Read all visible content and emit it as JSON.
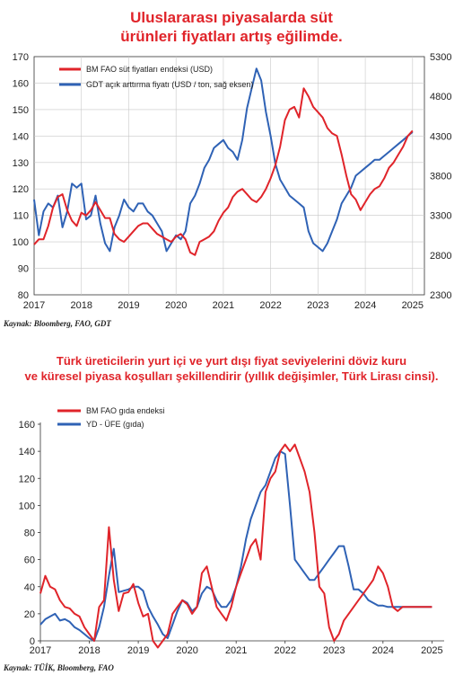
{
  "header": {
    "title_line1": "Uluslararası piyasalarda süt",
    "title_line2": "ürünleri fiyatları artış eğilimde."
  },
  "source1": "Kaynak: Bloomberg, FAO, GDT",
  "header2": {
    "title_line1": "Türk üreticilerin yurt içi ve yurt dışı fiyat seviyelerini döviz kuru",
    "title_line2": "ve küresel piyasa koşulları şekillendirir (yıllık değişimler, Türk Lirası cinsi)."
  },
  "source2": "Kaynak: TÜİK, Bloomberg, FAO",
  "chart_data": [
    {
      "type": "line",
      "title": "Uluslararası piyasalarda süt ürünleri fiyatları artış eğilimde.",
      "x_ticks": [
        "2017",
        "2018",
        "2019",
        "2020",
        "2021",
        "2022",
        "2023",
        "2024",
        "2025"
      ],
      "y_left_ticks": [
        80,
        90,
        100,
        110,
        120,
        130,
        140,
        150,
        160,
        170
      ],
      "y_right_ticks": [
        2300,
        2800,
        3300,
        3800,
        4300,
        4800,
        5300
      ],
      "ylim_left": [
        80,
        170
      ],
      "ylim_right": [
        2300,
        5300
      ],
      "xlim": [
        2017.0,
        2025.25
      ],
      "grid": true,
      "legend": "top-left",
      "colors": {
        "fao": "#e0242a",
        "gdt": "#2f62b5"
      },
      "series": [
        {
          "name": "BM FAO süt fiyatları endeksi (USD)",
          "axis": "left",
          "x": [
            2017.0,
            2017.1,
            2017.2,
            2017.3,
            2017.4,
            2017.5,
            2017.6,
            2017.7,
            2017.8,
            2017.9,
            2018.0,
            2018.1,
            2018.2,
            2018.3,
            2018.4,
            2018.5,
            2018.6,
            2018.7,
            2018.8,
            2018.9,
            2019.0,
            2019.1,
            2019.2,
            2019.3,
            2019.4,
            2019.5,
            2019.6,
            2019.7,
            2019.8,
            2019.9,
            2020.0,
            2020.1,
            2020.2,
            2020.3,
            2020.4,
            2020.5,
            2020.6,
            2020.7,
            2020.8,
            2020.9,
            2021.0,
            2021.1,
            2021.2,
            2021.3,
            2021.4,
            2021.5,
            2021.6,
            2021.7,
            2021.8,
            2021.9,
            2022.0,
            2022.1,
            2022.2,
            2022.3,
            2022.4,
            2022.5,
            2022.6,
            2022.7,
            2022.8,
            2022.9,
            2023.0,
            2023.1,
            2023.2,
            2023.3,
            2023.4,
            2023.5,
            2023.6,
            2023.7,
            2023.8,
            2023.9,
            2024.0,
            2024.1,
            2024.2,
            2024.3,
            2024.4,
            2024.5,
            2024.6,
            2024.7,
            2024.8,
            2024.9,
            2025.0
          ],
          "values": [
            99,
            101,
            101,
            106,
            113,
            117,
            118,
            112,
            108,
            106,
            111,
            110,
            112,
            115,
            112,
            109,
            109,
            103,
            101,
            100,
            102,
            104,
            106,
            107,
            107,
            105,
            103,
            102,
            101,
            100,
            102,
            103,
            101,
            96,
            95,
            100,
            101,
            102,
            104,
            108,
            111,
            113,
            117,
            119,
            120,
            118,
            116,
            115,
            117,
            120,
            124,
            129,
            136,
            146,
            150,
            151,
            147,
            158,
            155,
            151,
            149,
            147,
            143,
            141,
            140,
            133,
            125,
            118,
            116,
            112,
            115,
            118,
            120,
            121,
            124,
            128,
            130,
            133,
            136,
            140,
            142
          ]
        },
        {
          "name": "GDT açık arttırma fiyatı (USD / ton, sağ eksen)",
          "axis": "right",
          "x": [
            2017.0,
            2017.1,
            2017.2,
            2017.3,
            2017.4,
            2017.5,
            2017.6,
            2017.7,
            2017.8,
            2017.9,
            2018.0,
            2018.1,
            2018.2,
            2018.3,
            2018.4,
            2018.5,
            2018.6,
            2018.7,
            2018.8,
            2018.9,
            2019.0,
            2019.1,
            2019.2,
            2019.3,
            2019.4,
            2019.5,
            2019.6,
            2019.7,
            2019.8,
            2019.9,
            2020.0,
            2020.1,
            2020.2,
            2020.3,
            2020.4,
            2020.5,
            2020.6,
            2020.7,
            2020.8,
            2020.9,
            2021.0,
            2021.1,
            2021.2,
            2021.3,
            2021.4,
            2021.5,
            2021.6,
            2021.7,
            2021.8,
            2021.9,
            2022.0,
            2022.1,
            2022.2,
            2022.3,
            2022.4,
            2022.5,
            2022.6,
            2022.7,
            2022.8,
            2022.9,
            2023.0,
            2023.1,
            2023.2,
            2023.3,
            2023.4,
            2023.5,
            2023.6,
            2023.7,
            2023.8,
            2023.9,
            2024.0,
            2024.1,
            2024.2,
            2024.3,
            2024.4,
            2024.5,
            2024.6,
            2024.7,
            2024.8,
            2024.9,
            2025.0
          ],
          "values": [
            3500,
            3050,
            3350,
            3450,
            3400,
            3550,
            3150,
            3350,
            3700,
            3650,
            3700,
            3250,
            3300,
            3550,
            3200,
            2950,
            2850,
            3150,
            3300,
            3500,
            3400,
            3350,
            3450,
            3450,
            3350,
            3300,
            3200,
            3100,
            2850,
            2950,
            3050,
            3000,
            3100,
            3450,
            3550,
            3700,
            3900,
            4000,
            4150,
            4200,
            4250,
            4150,
            4100,
            4000,
            4250,
            4650,
            4900,
            5150,
            5000,
            4600,
            4300,
            3950,
            3750,
            3650,
            3550,
            3500,
            3450,
            3400,
            3100,
            2950,
            2900,
            2850,
            2950,
            3100,
            3250,
            3450,
            3550,
            3650,
            3800,
            3850,
            3900,
            3950,
            4000,
            4000,
            4050,
            4100,
            4150,
            4200,
            4250,
            4300,
            4350
          ]
        }
      ]
    },
    {
      "type": "line",
      "title": "Türk üreticilerin yurt içi ve yurt dışı fiyat seviyelerini döviz kuru ve küresel piyasa koşulları şekillendirir (yıllık değişimler, Türk Lirası cinsi).",
      "x_ticks": [
        "2017",
        "2018",
        "2019",
        "2020",
        "2021",
        "2022",
        "2023",
        "2024",
        "2025"
      ],
      "y_ticks": [
        0,
        20,
        40,
        60,
        80,
        100,
        120,
        140,
        160
      ],
      "ylim": [
        0,
        160
      ],
      "xlim": [
        2017.0,
        2025.25
      ],
      "grid": false,
      "legend": "top-left",
      "colors": {
        "fao": "#e0242a",
        "ufe": "#2f62b5"
      },
      "series": [
        {
          "name": "BM FAO gıda endeksi",
          "x": [
            2017.0,
            2017.1,
            2017.2,
            2017.3,
            2017.4,
            2017.5,
            2017.6,
            2017.7,
            2017.8,
            2017.9,
            2018.0,
            2018.1,
            2018.2,
            2018.3,
            2018.4,
            2018.5,
            2018.6,
            2018.7,
            2018.8,
            2018.9,
            2019.0,
            2019.1,
            2019.2,
            2019.3,
            2019.4,
            2019.5,
            2019.6,
            2019.7,
            2019.8,
            2019.9,
            2020.0,
            2020.1,
            2020.2,
            2020.3,
            2020.4,
            2020.5,
            2020.6,
            2020.7,
            2020.8,
            2020.9,
            2021.0,
            2021.1,
            2021.2,
            2021.3,
            2021.4,
            2021.5,
            2021.6,
            2021.7,
            2021.8,
            2021.9,
            2022.0,
            2022.1,
            2022.2,
            2022.3,
            2022.4,
            2022.5,
            2022.6,
            2022.7,
            2022.8,
            2022.9,
            2023.0,
            2023.1,
            2023.2,
            2023.3,
            2023.4,
            2023.5,
            2023.6,
            2023.7,
            2023.8,
            2023.9,
            2024.0,
            2024.1,
            2024.2,
            2024.3,
            2024.4,
            2024.5,
            2024.6,
            2024.7,
            2024.8,
            2024.9,
            2025.0
          ],
          "values": [
            35,
            48,
            40,
            38,
            30,
            25,
            24,
            20,
            18,
            10,
            5,
            0,
            25,
            30,
            84,
            45,
            22,
            35,
            36,
            42,
            28,
            18,
            20,
            0,
            -5,
            0,
            5,
            20,
            25,
            30,
            27,
            20,
            25,
            50,
            55,
            40,
            25,
            20,
            15,
            25,
            40,
            50,
            60,
            70,
            75,
            60,
            110,
            120,
            125,
            140,
            145,
            140,
            145,
            135,
            125,
            110,
            80,
            40,
            35,
            10,
            0,
            5,
            15,
            20,
            25,
            30,
            35,
            40,
            45,
            55,
            50,
            40,
            25,
            22,
            25,
            25,
            25,
            25,
            25,
            25,
            25
          ],
          "note": "approximate"
        },
        {
          "name": "YD - ÜFE (gıda)",
          "x": [
            2017.0,
            2017.1,
            2017.2,
            2017.3,
            2017.4,
            2017.5,
            2017.6,
            2017.7,
            2017.8,
            2017.9,
            2018.0,
            2018.1,
            2018.2,
            2018.3,
            2018.4,
            2018.5,
            2018.6,
            2018.7,
            2018.8,
            2018.9,
            2019.0,
            2019.1,
            2019.2,
            2019.3,
            2019.4,
            2019.5,
            2019.6,
            2019.7,
            2019.8,
            2019.9,
            2020.0,
            2020.1,
            2020.2,
            2020.3,
            2020.4,
            2020.5,
            2020.6,
            2020.7,
            2020.8,
            2020.9,
            2021.0,
            2021.1,
            2021.2,
            2021.3,
            2021.4,
            2021.5,
            2021.6,
            2021.7,
            2021.8,
            2021.9,
            2022.0,
            2022.1,
            2022.2,
            2022.3,
            2022.4,
            2022.5,
            2022.6,
            2022.7,
            2022.8,
            2022.9,
            2023.0,
            2023.1,
            2023.2,
            2023.3,
            2023.4,
            2023.5,
            2023.6,
            2023.7,
            2023.8,
            2023.9,
            2024.0,
            2024.1,
            2024.2,
            2024.3,
            2024.4,
            2024.5,
            2024.6,
            2024.7,
            2024.8,
            2024.9,
            2025.0
          ],
          "values": [
            12,
            16,
            18,
            20,
            15,
            16,
            14,
            10,
            8,
            5,
            2,
            0,
            10,
            25,
            48,
            68,
            36,
            37,
            38,
            40,
            40,
            37,
            25,
            18,
            12,
            5,
            2,
            12,
            22,
            30,
            28,
            22,
            25,
            35,
            40,
            38,
            30,
            25,
            25,
            30,
            40,
            55,
            75,
            90,
            100,
            110,
            115,
            125,
            135,
            140,
            138,
            100,
            60,
            55,
            50,
            45,
            45,
            50,
            55,
            60,
            65,
            70,
            70,
            55,
            38,
            38,
            35,
            30,
            28,
            26,
            26,
            25,
            25,
            25,
            25,
            25,
            25,
            25,
            25,
            25,
            25
          ],
          "note": "approximate"
        }
      ]
    }
  ]
}
